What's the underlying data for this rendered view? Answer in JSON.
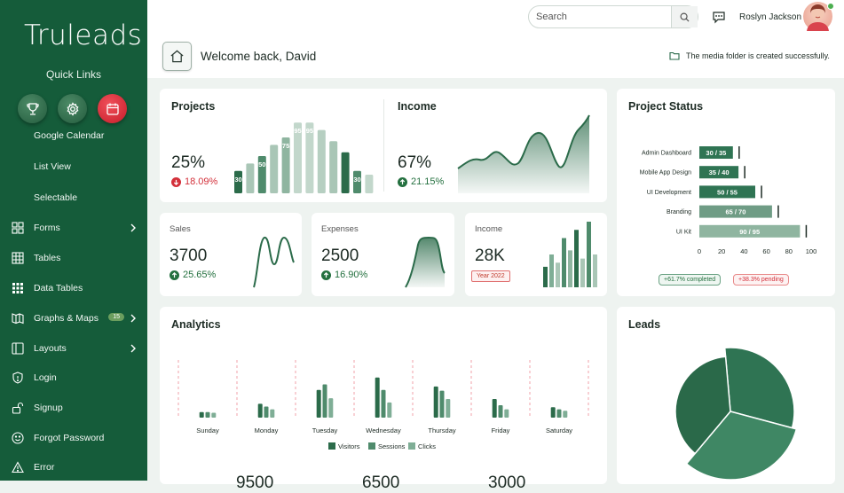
{
  "sidebar": {
    "logo": "Truleads",
    "quick_links_title": "Quick Links",
    "quick_links": [
      {
        "icon": "trophy-icon"
      },
      {
        "icon": "gear-icon"
      },
      {
        "icon": "calendar-icon"
      }
    ],
    "sub_items": [
      "Google Calendar",
      "List View",
      "Selectable"
    ],
    "items": [
      {
        "label": "Forms",
        "icon": "forms-icon",
        "chevron": true
      },
      {
        "label": "Tables",
        "icon": "table-icon"
      },
      {
        "label": "Data Tables",
        "icon": "data-tables-icon"
      },
      {
        "label": "Graphs & Maps",
        "icon": "map-icon",
        "badge": "15",
        "chevron": true
      },
      {
        "label": "Layouts",
        "icon": "layout-icon",
        "chevron": true
      },
      {
        "label": "Login",
        "icon": "shield-icon"
      },
      {
        "label": "Signup",
        "icon": "lock-icon"
      },
      {
        "label": "Forgot Password",
        "icon": "smiley-icon"
      },
      {
        "label": "Error",
        "icon": "warning-icon"
      }
    ]
  },
  "header": {
    "search_placeholder": "Search",
    "user_name": "Roslyn Jackson",
    "welcome": "Welcome back, David",
    "notice": "The media folder is created successfully."
  },
  "projects": {
    "title": "Projects",
    "value": "25%",
    "change": "18.09%",
    "bar_labels": [
      "30",
      "",
      "50",
      "",
      "75",
      "95",
      "95",
      "",
      "",
      "",
      "30",
      ""
    ],
    "bars": [
      30,
      40,
      50,
      65,
      75,
      95,
      95,
      85,
      70,
      55,
      30,
      25
    ]
  },
  "income": {
    "title": "Income",
    "value": "67%",
    "change": "21.15%"
  },
  "sales": {
    "title": "Sales",
    "value": "3700",
    "change": "25.65%"
  },
  "expenses": {
    "title": "Expenses",
    "value": "2500",
    "change": "16.90%"
  },
  "income2": {
    "title": "Income",
    "value": "28K",
    "badge": "Year 2022",
    "bars": [
      25,
      40,
      30,
      60,
      45,
      70,
      35,
      80,
      40
    ]
  },
  "project_status": {
    "title": "Project Status",
    "rows": [
      {
        "label": "Admin Dashboard",
        "text": "30 / 35",
        "value": 30,
        "target": 35
      },
      {
        "label": "Mobile App Design",
        "text": "35 / 40",
        "value": 35,
        "target": 40
      },
      {
        "label": "UI Development",
        "text": "50 / 55",
        "value": 50,
        "target": 55
      },
      {
        "label": "Branding",
        "text": "65 / 70",
        "value": 65,
        "target": 70
      },
      {
        "label": "UI Kit",
        "text": "90 / 95",
        "value": 90,
        "target": 95
      }
    ],
    "ticks": [
      "0",
      "20",
      "40",
      "60",
      "80",
      "100"
    ],
    "completed": "+61.7% completed",
    "pending": "+38.3% pending"
  },
  "analytics": {
    "title": "Analytics",
    "days": [
      "Sunday",
      "Monday",
      "Tuesday",
      "Wednesday",
      "Thursday",
      "Friday",
      "Saturday"
    ],
    "series": [
      {
        "name": "Visitors",
        "values": [
          8,
          20,
          40,
          58,
          45,
          27,
          15
        ]
      },
      {
        "name": "Sessions",
        "values": [
          8,
          16,
          48,
          40,
          39,
          18,
          12
        ]
      },
      {
        "name": "Clicks",
        "values": [
          7,
          12,
          28,
          22,
          27,
          12,
          10
        ]
      }
    ],
    "colors": [
      "#2b6b4a",
      "#4f8b6c",
      "#7fae96"
    ],
    "bottom_values": [
      "9500",
      "6500",
      "3000"
    ]
  },
  "leads": {
    "title": "Leads",
    "slices": [
      {
        "value": 33,
        "color": "#2f7453"
      },
      {
        "value": 33,
        "color": "#3f8764"
      },
      {
        "value": 34,
        "color": "#2a6949"
      }
    ]
  },
  "colors": {
    "sidebar": "#155c3a",
    "accent": "#24703f",
    "danger": "#d3303a"
  }
}
